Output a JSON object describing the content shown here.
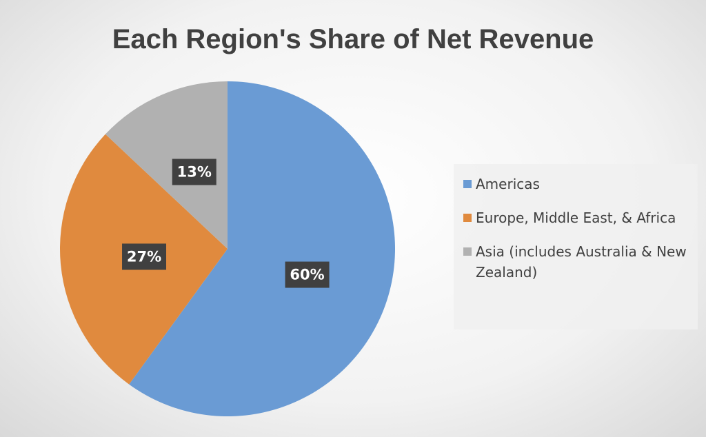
{
  "chart_data": {
    "type": "pie",
    "title": "Each Region's Share of Net Revenue",
    "categories": [
      "Americas",
      "Europe, Middle East, & Africa",
      "Asia (includes Australia & New Zealand)"
    ],
    "values": [
      60,
      27,
      13
    ],
    "value_labels": [
      "60%",
      "27%",
      "13%"
    ],
    "colors": [
      "#6a9bd4",
      "#e08a3e",
      "#b1b1b1"
    ],
    "legend": "right"
  }
}
